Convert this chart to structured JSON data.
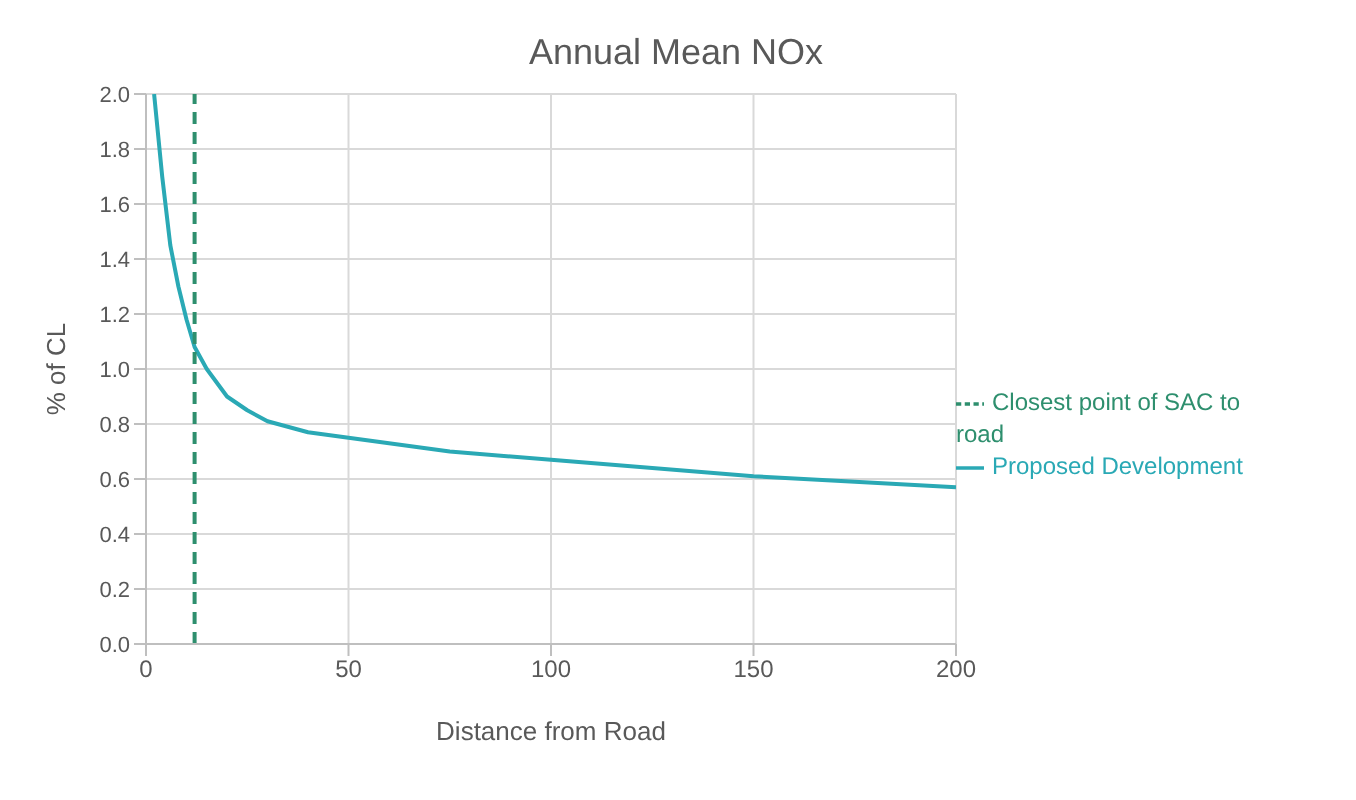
{
  "chart_data": {
    "type": "line",
    "title": "Annual Mean NOx",
    "xlabel": "Distance from Road",
    "ylabel": "% of CL",
    "xlim": [
      0,
      200
    ],
    "xticks": [
      0,
      50,
      100,
      150,
      200
    ],
    "ylim": [
      0,
      2
    ],
    "yticks": [
      {
        "value": 0,
        "label": "0.0"
      },
      {
        "value": 0.2,
        "label": "0.2"
      },
      {
        "value": 0.4,
        "label": "0.4"
      },
      {
        "value": 0.6,
        "label": "0.6"
      },
      {
        "value": 0.8,
        "label": "0.8"
      },
      {
        "value": 1,
        "label": "1.0"
      },
      {
        "value": 1.2,
        "label": "1.2"
      },
      {
        "value": 1.4,
        "label": "1.4"
      },
      {
        "value": 1.6,
        "label": "1.6"
      },
      {
        "value": 1.8,
        "label": "1.8"
      },
      {
        "value": 2,
        "label": "2.0"
      }
    ],
    "grid": true,
    "legend": "right",
    "marker": "none",
    "series": [
      {
        "name": "Proposed Development",
        "color": "#2aa9b5",
        "line_style": "solid",
        "x": [
          2,
          4,
          6,
          8,
          10,
          12,
          15,
          20,
          25,
          30,
          40,
          50,
          75,
          100,
          125,
          150,
          175,
          200
        ],
        "values": [
          2.0,
          1.7,
          1.45,
          1.3,
          1.18,
          1.08,
          1.0,
          0.9,
          0.85,
          0.81,
          0.77,
          0.75,
          0.7,
          0.67,
          0.64,
          0.61,
          0.59,
          0.57
        ]
      },
      {
        "name": "Closest point of SAC to road",
        "color": "#2e8f6e",
        "line_style": "dashed",
        "x": [
          12,
          12
        ],
        "values": [
          0,
          2
        ]
      }
    ]
  }
}
